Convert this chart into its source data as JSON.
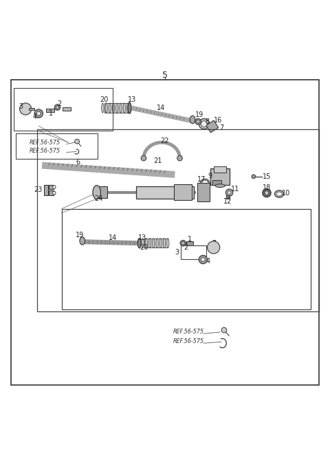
{
  "title": "5",
  "background_color": "#ffffff",
  "border_color": "#000000",
  "line_color": "#333333",
  "part_color": "#888888",
  "part_color_dark": "#555555",
  "part_color_light": "#bbbbbb",
  "label_color": "#222222",
  "label_fontsize": 7.5,
  "title_fontsize": 9,
  "ref_label": "REF.56-575"
}
